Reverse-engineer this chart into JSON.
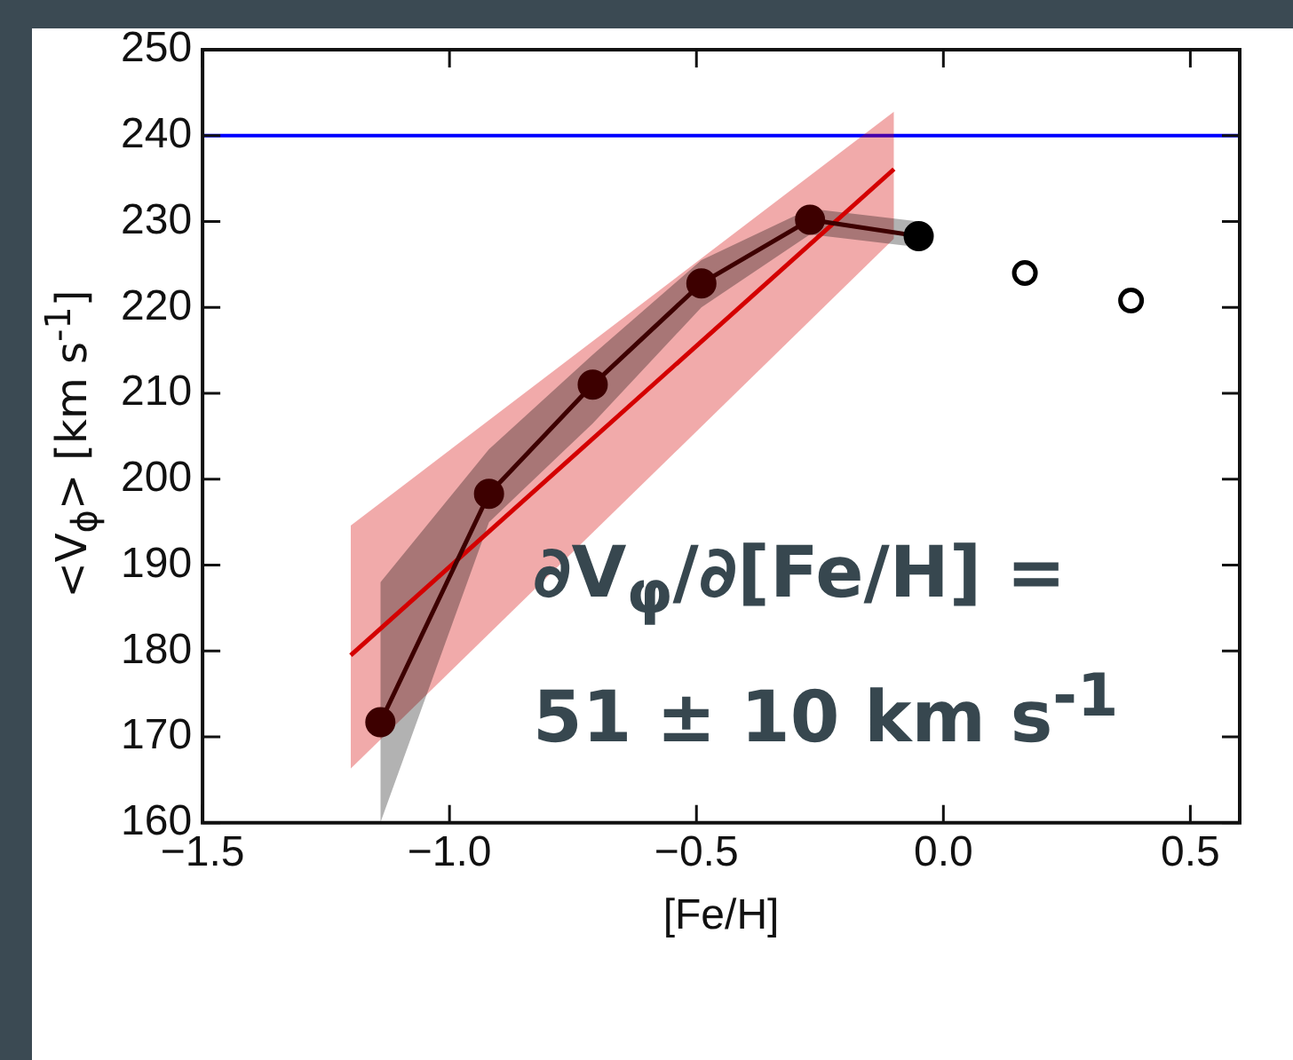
{
  "chart_data": {
    "type": "line",
    "ylabel": "<V$_{ϕ}$> [km s$^{-1}$]",
    "xlabel": "[Fe/H]",
    "annotations": [
      "∂V$_{φ}$/∂[Fe/H] =",
      "51 ± 10 km s$^{-1}$"
    ],
    "xlim": [
      -1.5,
      0.6
    ],
    "xticks": [
      {
        "value": -1.5,
        "label": "−1.5"
      },
      {
        "value": -1.0,
        "label": "−1.0"
      },
      {
        "value": -0.5,
        "label": "−0.5"
      },
      {
        "value": 0,
        "label": "0.0"
      },
      {
        "value": 0.5,
        "label": "0.5"
      }
    ],
    "ylim": [
      160,
      250
    ],
    "yticks": [
      160,
      170,
      180,
      190,
      200,
      210,
      220,
      230,
      240,
      250
    ],
    "series": [
      {
        "type": "line",
        "color": "#3d0000",
        "colors": [
          "#3d0000",
          "#3d0000",
          "#3d0000",
          "#3d0000",
          "#3d0000",
          "#000000"
        ],
        "marker": "circle",
        "x": [
          -1.14,
          -0.92,
          -0.71,
          -0.49,
          -0.27,
          -0.05
        ],
        "values": [
          171.7,
          198.3,
          211,
          222.8,
          230.2,
          228.3
        ],
        "lower": [
          160,
          195,
          206.5,
          220,
          228.5,
          227
        ],
        "upper": [
          188,
          203.5,
          214.5,
          225.5,
          231.5,
          230
        ]
      },
      {
        "type": "scatter",
        "color": "#000000",
        "marker": "circle",
        "x": [
          0.165,
          0.38
        ],
        "values": [
          224,
          220.8
        ]
      },
      {
        "type": "line",
        "color": "#d40000",
        "marker": "none",
        "x": [
          -1.2,
          -0.1
        ],
        "values": [
          179.5,
          236.1
        ],
        "lower": [
          166.3,
          228
        ],
        "upper": [
          194.6,
          242.8
        ]
      }
    ],
    "ref_lines": [
      {
        "axis": "y",
        "value": 240,
        "color": "#0000ff"
      }
    ],
    "grid": false,
    "legend": false
  }
}
